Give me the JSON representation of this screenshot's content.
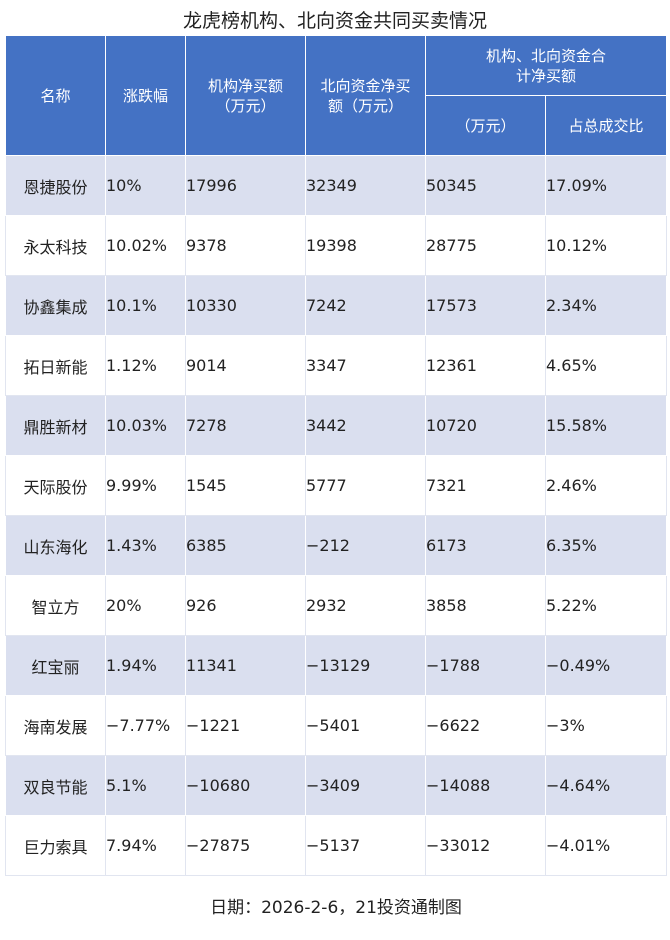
{
  "title": "龙虎榜机构、北向资金共同买卖情况",
  "headers": {
    "name": "名称",
    "change": "涨跌幅",
    "inst": "机构净买额（万元）",
    "north": "北向资金净买额（万元）",
    "combined": "机构、北向资金合计净买额",
    "combined_unit": "（万元）",
    "ratio": "占总成交比"
  },
  "chart_data": {
    "type": "table",
    "title": "龙虎榜机构、北向资金共同买卖情况",
    "columns": [
      "名称",
      "涨跌幅",
      "机构净买额（万元）",
      "北向资金净买额（万元）",
      "机构、北向资金合计净买额（万元）",
      "占总成交比"
    ],
    "rows": [
      [
        "恩捷股份",
        "10%",
        "17996",
        "32349",
        "50345",
        "17.09%"
      ],
      [
        "永太科技",
        "10.02%",
        "9378",
        "19398",
        "28775",
        "10.12%"
      ],
      [
        "协鑫集成",
        "10.1%",
        "10330",
        "7242",
        "17573",
        "2.34%"
      ],
      [
        "拓日新能",
        "1.12%",
        "9014",
        "3347",
        "12361",
        "4.65%"
      ],
      [
        "鼎胜新材",
        "10.03%",
        "7278",
        "3442",
        "10720",
        "15.58%"
      ],
      [
        "天际股份",
        "9.99%",
        "1545",
        "5777",
        "7321",
        "2.46%"
      ],
      [
        "山东海化",
        "1.43%",
        "6385",
        "−212",
        "6173",
        "6.35%"
      ],
      [
        "智立方",
        "20%",
        "926",
        "2932",
        "3858",
        "5.22%"
      ],
      [
        "红宝丽",
        "1.94%",
        "11341",
        "−13129",
        "−1788",
        "−0.49%"
      ],
      [
        "海南发展",
        "−7.77%",
        "−1221",
        "−5401",
        "−6622",
        "−3%"
      ],
      [
        "双良节能",
        "5.1%",
        "−10680",
        "−3409",
        "−14088",
        "−4.64%"
      ],
      [
        "巨力索具",
        "7.94%",
        "−27875",
        "−5137",
        "−33012",
        "−4.01%"
      ]
    ]
  },
  "footer": "日期：2026-2-6，21投资通制图",
  "colors": {
    "header_bg": "#4472c4",
    "stripe": "#dadfef"
  }
}
